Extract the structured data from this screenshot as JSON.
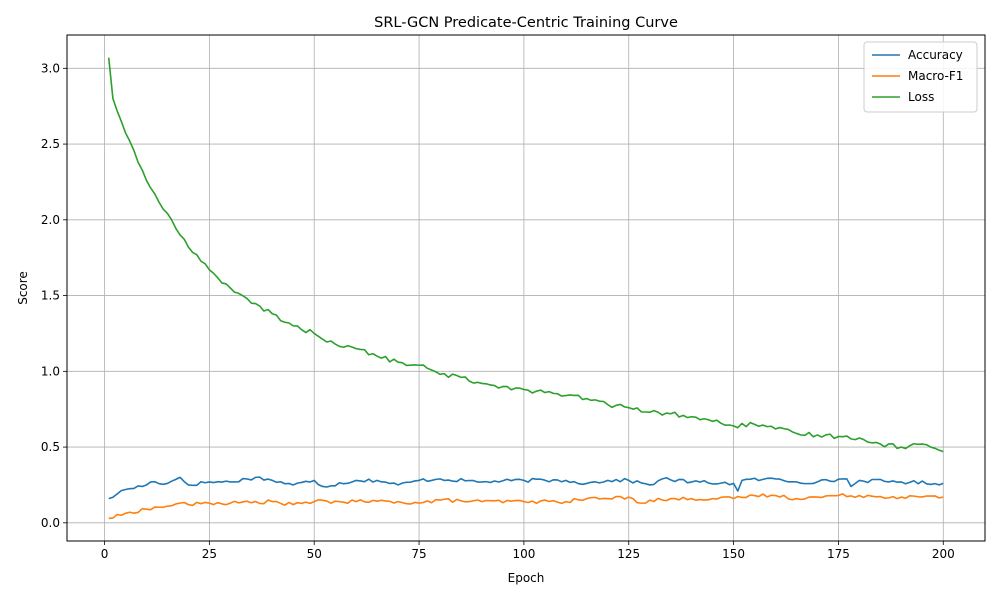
{
  "chart_data": {
    "type": "line",
    "title": "SRL-GCN Predicate-Centric Training Curve",
    "xlabel": "Epoch",
    "ylabel": "Score",
    "xlim": [
      -8.95,
      209.95
    ],
    "ylim": [
      -0.12,
      3.22
    ],
    "xticks": [
      0,
      25,
      50,
      75,
      100,
      125,
      150,
      175,
      200
    ],
    "yticks": [
      0.0,
      0.5,
      1.0,
      1.5,
      2.0,
      2.5,
      3.0
    ],
    "xtick_labels": [
      "0",
      "25",
      "50",
      "75",
      "100",
      "125",
      "150",
      "175",
      "200"
    ],
    "ytick_labels": [
      "0.0",
      "0.5",
      "1.0",
      "1.5",
      "2.0",
      "2.5",
      "3.0"
    ],
    "grid": true,
    "legend_position": "top-right",
    "epochs": {
      "start": 1,
      "end": 200
    },
    "series": [
      {
        "name": "Accuracy",
        "color": "#1f77b4",
        "keypoints": [
          [
            1,
            0.16
          ],
          [
            3,
            0.19
          ],
          [
            5,
            0.22
          ],
          [
            10,
            0.25
          ],
          [
            11,
            0.27
          ],
          [
            15,
            0.26
          ],
          [
            18,
            0.3
          ],
          [
            20,
            0.25
          ],
          [
            25,
            0.27
          ],
          [
            30,
            0.27
          ],
          [
            36,
            0.3
          ],
          [
            40,
            0.28
          ],
          [
            45,
            0.25
          ],
          [
            50,
            0.28
          ],
          [
            52,
            0.24
          ],
          [
            60,
            0.28
          ],
          [
            65,
            0.28
          ],
          [
            70,
            0.25
          ],
          [
            75,
            0.28
          ],
          [
            80,
            0.29
          ],
          [
            90,
            0.27
          ],
          [
            100,
            0.28
          ],
          [
            110,
            0.28
          ],
          [
            115,
            0.26
          ],
          [
            120,
            0.28
          ],
          [
            125,
            0.28
          ],
          [
            130,
            0.25
          ],
          [
            133,
            0.29
          ],
          [
            140,
            0.27
          ],
          [
            150,
            0.26
          ],
          [
            151,
            0.21
          ],
          [
            152,
            0.28
          ],
          [
            160,
            0.29
          ],
          [
            165,
            0.27
          ],
          [
            170,
            0.27
          ],
          [
            177,
            0.29
          ],
          [
            178,
            0.24
          ],
          [
            180,
            0.28
          ],
          [
            190,
            0.27
          ],
          [
            200,
            0.26
          ]
        ],
        "noise": 0.012
      },
      {
        "name": "Macro-F1",
        "color": "#ff7f0e",
        "keypoints": [
          [
            1,
            0.03
          ],
          [
            4,
            0.05
          ],
          [
            6,
            0.07
          ],
          [
            10,
            0.09
          ],
          [
            15,
            0.11
          ],
          [
            18,
            0.13
          ],
          [
            20,
            0.12
          ],
          [
            25,
            0.13
          ],
          [
            30,
            0.13
          ],
          [
            40,
            0.14
          ],
          [
            45,
            0.12
          ],
          [
            50,
            0.14
          ],
          [
            60,
            0.14
          ],
          [
            70,
            0.14
          ],
          [
            75,
            0.13
          ],
          [
            80,
            0.15
          ],
          [
            90,
            0.14
          ],
          [
            100,
            0.14
          ],
          [
            110,
            0.14
          ],
          [
            115,
            0.16
          ],
          [
            120,
            0.16
          ],
          [
            125,
            0.17
          ],
          [
            128,
            0.13
          ],
          [
            130,
            0.15
          ],
          [
            140,
            0.16
          ],
          [
            150,
            0.16
          ],
          [
            155,
            0.18
          ],
          [
            160,
            0.18
          ],
          [
            165,
            0.16
          ],
          [
            170,
            0.17
          ],
          [
            175,
            0.18
          ],
          [
            180,
            0.18
          ],
          [
            190,
            0.17
          ],
          [
            200,
            0.17
          ]
        ],
        "noise": 0.012
      },
      {
        "name": "Loss",
        "color": "#2ca02c",
        "keypoints": [
          [
            1,
            3.07
          ],
          [
            2,
            2.8
          ],
          [
            4,
            2.65
          ],
          [
            6,
            2.52
          ],
          [
            8,
            2.38
          ],
          [
            10,
            2.26
          ],
          [
            12,
            2.17
          ],
          [
            14,
            2.07
          ],
          [
            16,
            2.0
          ],
          [
            18,
            1.9
          ],
          [
            20,
            1.82
          ],
          [
            22,
            1.77
          ],
          [
            25,
            1.67
          ],
          [
            30,
            1.55
          ],
          [
            35,
            1.45
          ],
          [
            40,
            1.38
          ],
          [
            45,
            1.3
          ],
          [
            50,
            1.25
          ],
          [
            55,
            1.18
          ],
          [
            60,
            1.15
          ],
          [
            65,
            1.1
          ],
          [
            70,
            1.06
          ],
          [
            75,
            1.04
          ],
          [
            80,
            0.98
          ],
          [
            85,
            0.96
          ],
          [
            90,
            0.92
          ],
          [
            95,
            0.9
          ],
          [
            100,
            0.88
          ],
          [
            105,
            0.86
          ],
          [
            110,
            0.84
          ],
          [
            115,
            0.82
          ],
          [
            120,
            0.78
          ],
          [
            125,
            0.76
          ],
          [
            130,
            0.73
          ],
          [
            135,
            0.72
          ],
          [
            140,
            0.7
          ],
          [
            145,
            0.67
          ],
          [
            150,
            0.64
          ],
          [
            155,
            0.65
          ],
          [
            160,
            0.62
          ],
          [
            165,
            0.59
          ],
          [
            170,
            0.58
          ],
          [
            175,
            0.57
          ],
          [
            180,
            0.56
          ],
          [
            185,
            0.52
          ],
          [
            190,
            0.5
          ],
          [
            195,
            0.52
          ],
          [
            197,
            0.5
          ],
          [
            200,
            0.47
          ]
        ],
        "noise": 0.015
      }
    ]
  }
}
